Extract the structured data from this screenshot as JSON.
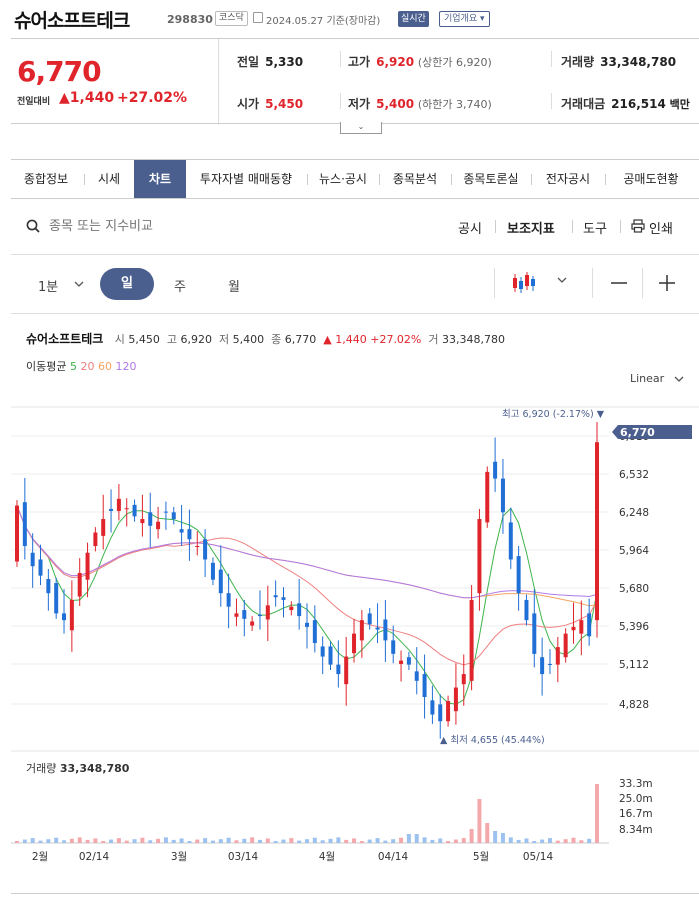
{
  "header": {
    "title": "슈어소프트테크",
    "code": "298830",
    "market": "코스닥",
    "date": "2024.05.27",
    "date_suffix": "기준(장마감)",
    "live_badge": "실시간",
    "company_button": "기업개요 ▾"
  },
  "price": {
    "current": "6,770",
    "change_label": "전일대비",
    "change": "1,440",
    "change_pct": "+27.02%"
  },
  "stats": {
    "prev_label": "전일",
    "prev": "5,330",
    "open_label": "시가",
    "open": "5,450",
    "high_label": "고가",
    "high": "6,920",
    "upper_limit": "(상한가 6,920)",
    "low_label": "저가",
    "low": "5,400",
    "lower_limit": "(하한가 3,740)",
    "volume_label": "거래량",
    "volume": "33,348,780",
    "amount_label": "거래대금",
    "amount": "216,514",
    "amount_unit": "백만"
  },
  "tabs": [
    "종합정보",
    "시세",
    "차트",
    "투자자별 매매동향",
    "뉴스·공시",
    "종목분석",
    "종목토론실",
    "전자공시",
    "공매도현황"
  ],
  "search": {
    "placeholder": "종목 또는 지수비교"
  },
  "tools": {
    "disclosure": "공시",
    "indicator": "보조지표",
    "tool": "도구",
    "print": "인쇄"
  },
  "periods": {
    "minute": "1분",
    "day": "일",
    "week": "주",
    "month": "월"
  },
  "info": {
    "name": "슈어소프트테크",
    "open_k": "시",
    "open": "5,450",
    "high_k": "고",
    "high": "6,920",
    "low_k": "저",
    "low": "5,400",
    "close_k": "종",
    "close": "6,770",
    "change": "▲ 1,440 +27.02%",
    "volume_k": "거",
    "volume": "33,348,780"
  },
  "ma": {
    "label": "이동평균",
    "p5": "5",
    "p20": "20",
    "p60": "60",
    "p120": "120"
  },
  "scale": {
    "label": "Linear"
  },
  "chart_data": {
    "type": "candlestick",
    "price_ticks": [
      "6,816",
      "6,532",
      "6,248",
      "5,964",
      "5,680",
      "5,396",
      "5,112",
      "4,828"
    ],
    "current_price": "6,770",
    "high_annotation": "최고 6,920 (-2.17%) ▼",
    "low_annotation": "▲ 최저 4,655 (45.44%)",
    "volume_label": "거래량",
    "volume": "33,348,780",
    "volume_ticks": [
      "33.3m",
      "25.0m",
      "16.7m",
      "8.34m"
    ],
    "x_labels": [
      "2월",
      "02/14",
      "3월",
      "03/14",
      "4월",
      "04/14",
      "5월",
      "05/14"
    ],
    "colors": {
      "up": "#e0242b",
      "down": "#1f6fd6",
      "ma5": "#3cb44b",
      "ma20": "#f08080",
      "ma60": "#f4a460",
      "ma120": "#b07ae8"
    }
  }
}
